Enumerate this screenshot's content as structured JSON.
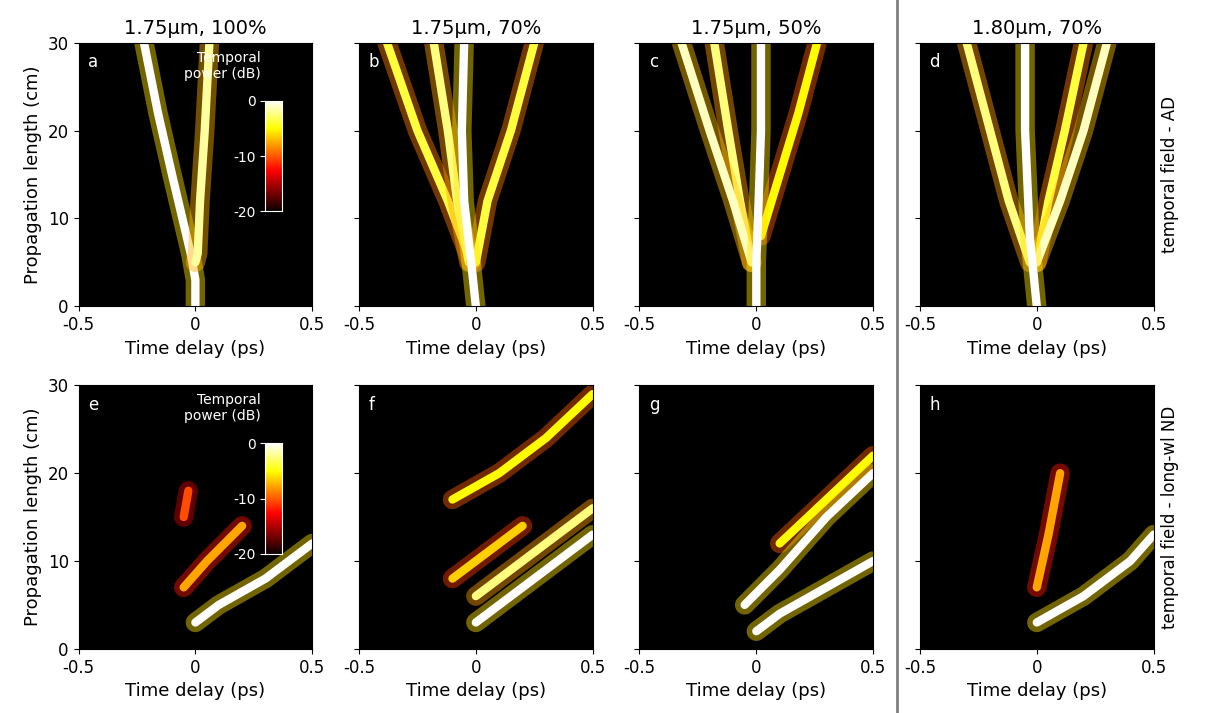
{
  "chart_data": [
    {
      "panel": "a",
      "title": "1.75µm, 100%",
      "type": "line",
      "ylabel": "Propagation length (cm)",
      "xlabel": "Time delay (ps)",
      "xlim": [
        -0.5,
        0.5
      ],
      "xticks": [
        -0.5,
        0,
        0.5
      ],
      "ylim": [
        0,
        30
      ],
      "yticks": [
        0,
        10,
        20,
        30
      ],
      "colorbar": {
        "label": "Temporal\npower (dB)",
        "range": [
          -20,
          0
        ],
        "ticks": [
          0,
          -10,
          -20
        ]
      },
      "series": [
        {
          "x": [
            0,
            0,
            -0.02,
            -0.1,
            -0.16,
            -0.22
          ],
          "values": [
            0,
            3,
            6,
            15,
            22,
            30
          ],
          "power": 0
        },
        {
          "x": [
            0,
            0.01,
            0.02,
            0.04,
            0.06
          ],
          "values": [
            5,
            6,
            12,
            20,
            30
          ],
          "power": -3
        }
      ]
    },
    {
      "panel": "b",
      "title": "1.75µm, 70%",
      "type": "line",
      "xlabel": "Time delay (ps)",
      "tick_labels": "x",
      "xlim": [
        -0.5,
        0.5
      ],
      "xticks": [
        -0.5,
        0,
        0.5
      ],
      "ylim": [
        0,
        30
      ],
      "yticks": [
        0,
        10,
        20,
        30
      ],
      "series": [
        {
          "x": [
            -0.02,
            -0.12,
            -0.25,
            -0.38
          ],
          "values": [
            5,
            12,
            20,
            30
          ],
          "power": -6
        },
        {
          "x": [
            -0.03,
            -0.08,
            -0.12,
            -0.18
          ],
          "values": [
            5,
            12,
            20,
            30
          ],
          "power": -4
        },
        {
          "x": [
            0,
            0.05,
            0.15,
            0.25
          ],
          "values": [
            5,
            12,
            20,
            30
          ],
          "power": -6
        },
        {
          "x": [
            0,
            -0.02,
            -0.05,
            -0.06,
            -0.05
          ],
          "values": [
            0,
            5,
            12,
            20,
            30
          ],
          "power": 0
        }
      ]
    },
    {
      "panel": "c",
      "title": "1.75µm, 50%",
      "type": "line",
      "xlabel": "Time delay (ps)",
      "tick_labels": "x",
      "xlim": [
        -0.5,
        0.5
      ],
      "xticks": [
        -0.5,
        0,
        0.5
      ],
      "ylim": [
        0,
        30
      ],
      "yticks": [
        0,
        10,
        20,
        30
      ],
      "series": [
        {
          "x": [
            0.02,
            0.1,
            0.18,
            0.26
          ],
          "values": [
            8,
            15,
            22,
            30
          ],
          "power": -8
        },
        {
          "x": [
            -0.02,
            -0.07,
            -0.12,
            -0.18
          ],
          "values": [
            5,
            12,
            20,
            30
          ],
          "power": -4
        },
        {
          "x": [
            -0.02,
            -0.1,
            -0.2,
            -0.32
          ],
          "values": [
            5,
            12,
            20,
            30
          ],
          "power": -2
        },
        {
          "x": [
            0,
            0,
            0.01,
            0.02,
            0.02
          ],
          "values": [
            0,
            5,
            12,
            20,
            30
          ],
          "power": 0
        }
      ]
    },
    {
      "panel": "d",
      "title": "1.80µm, 70%",
      "type": "line",
      "xlabel": "Time delay (ps)",
      "tick_labels": "x",
      "annotation": "temporal field - AD",
      "xlim": [
        -0.5,
        0.5
      ],
      "xticks": [
        -0.5,
        0,
        0.5
      ],
      "ylim": [
        0,
        30
      ],
      "yticks": [
        0,
        10,
        20,
        30
      ],
      "series": [
        {
          "x": [
            0,
            0.05,
            0.12,
            0.2
          ],
          "values": [
            5,
            12,
            20,
            30
          ],
          "power": -6
        },
        {
          "x": [
            -0.03,
            -0.12,
            -0.2,
            -0.3
          ],
          "values": [
            5,
            12,
            20,
            30
          ],
          "power": -4
        },
        {
          "x": [
            0,
            0.1,
            0.2,
            0.3
          ],
          "values": [
            5,
            12,
            20,
            30
          ],
          "power": -2
        },
        {
          "x": [
            0,
            -0.03,
            -0.05,
            -0.05
          ],
          "values": [
            0,
            8,
            20,
            30
          ],
          "power": 0
        }
      ]
    },
    {
      "panel": "e",
      "type": "line",
      "ylabel": "Propagation length (cm)",
      "xlabel": "Time delay (ps)",
      "xlim": [
        -0.5,
        0.5
      ],
      "xticks": [
        -0.5,
        0,
        0.5
      ],
      "ylim": [
        0,
        30
      ],
      "yticks": [
        0,
        10,
        20,
        30
      ],
      "colorbar": {
        "label": "Temporal\npower (dB)",
        "range": [
          -20,
          0
        ],
        "ticks": [
          0,
          -10,
          -20
        ]
      },
      "series": [
        {
          "x": [
            -0.05,
            -0.03
          ],
          "values": [
            15,
            18
          ],
          "power": -16
        },
        {
          "x": [
            -0.05,
            0.05,
            0.2
          ],
          "values": [
            7,
            10,
            14
          ],
          "power": -12
        },
        {
          "x": [
            0,
            0.1,
            0.3,
            0.5
          ],
          "values": [
            3,
            5,
            8,
            12
          ],
          "power": 0
        }
      ]
    },
    {
      "panel": "f",
      "type": "line",
      "xlabel": "Time delay (ps)",
      "tick_labels": "x",
      "xlim": [
        -0.5,
        0.5
      ],
      "xticks": [
        -0.5,
        0,
        0.5
      ],
      "ylim": [
        0,
        30
      ],
      "yticks": [
        0,
        10,
        20,
        30
      ],
      "series": [
        {
          "x": [
            -0.1,
            0.1,
            0.2
          ],
          "values": [
            8,
            12,
            14
          ],
          "power": -10
        },
        {
          "x": [
            -0.1,
            0.1,
            0.3,
            0.5
          ],
          "values": [
            17,
            20,
            24,
            29
          ],
          "power": -8
        },
        {
          "x": [
            0,
            0.2,
            0.4,
            0.5
          ],
          "values": [
            6,
            10,
            14,
            16
          ],
          "power": -4
        },
        {
          "x": [
            0,
            0.15,
            0.35,
            0.5
          ],
          "values": [
            3,
            6,
            10,
            13
          ],
          "power": 0
        }
      ]
    },
    {
      "panel": "g",
      "type": "line",
      "xlabel": "Time delay (ps)",
      "tick_labels": "x",
      "xlim": [
        -0.5,
        0.5
      ],
      "xticks": [
        -0.5,
        0,
        0.5
      ],
      "ylim": [
        0,
        30
      ],
      "yticks": [
        0,
        10,
        20,
        30
      ],
      "series": [
        {
          "x": [
            0.1,
            0.3,
            0.5
          ],
          "values": [
            12,
            17,
            22
          ],
          "power": -8
        },
        {
          "x": [
            -0.05,
            0.1,
            0.3,
            0.5
          ],
          "values": [
            5,
            9,
            15,
            20
          ],
          "power": 0
        },
        {
          "x": [
            0,
            0.1,
            0.3,
            0.5
          ],
          "values": [
            2,
            4,
            7,
            10
          ],
          "power": 0
        }
      ]
    },
    {
      "panel": "h",
      "type": "line",
      "xlabel": "Time delay (ps)",
      "tick_labels": "x",
      "annotation": "temporal field - long-wl ND",
      "xlim": [
        -0.5,
        0.5
      ],
      "xticks": [
        -0.5,
        0,
        0.5
      ],
      "ylim": [
        0,
        30
      ],
      "yticks": [
        0,
        10,
        20,
        30
      ],
      "series": [
        {
          "x": [
            0,
            0.05,
            0.1
          ],
          "values": [
            7,
            13,
            20
          ],
          "power": -12
        },
        {
          "x": [
            0,
            0.2,
            0.4,
            0.5
          ],
          "values": [
            3,
            6,
            10,
            13
          ],
          "power": 0
        }
      ]
    }
  ]
}
